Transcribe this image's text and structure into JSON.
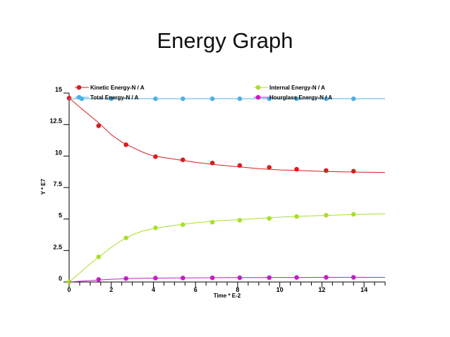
{
  "slide": {
    "title": "Energy Graph"
  },
  "chart_data": {
    "type": "line",
    "title": "",
    "xlabel": "Time * E-2",
    "ylabel": "Y * E7",
    "xlim": [
      0,
      15
    ],
    "ylim": [
      0,
      15
    ],
    "x_ticks": [
      0,
      2,
      4,
      6,
      8,
      10,
      12,
      14
    ],
    "x_tick_labels": [
      "0",
      "2",
      "4",
      "6",
      "8",
      "10",
      "12",
      "14"
    ],
    "y_ticks": [
      0,
      2.5,
      5,
      7.5,
      10,
      12.5,
      15
    ],
    "y_tick_labels": [
      "0",
      "2.5",
      "5",
      "7.5",
      "10",
      "12.5",
      "15"
    ],
    "grid": false,
    "legend_position": "top",
    "series": [
      {
        "name": "Kinetic Energy-N / A",
        "color": "#d81e1e",
        "curve_x": [
          0,
          0.5,
          1,
          1.5,
          2,
          2.5,
          3,
          3.5,
          4,
          5,
          6,
          7,
          8,
          9,
          10,
          11,
          12,
          13,
          14,
          15
        ],
        "curve_y": [
          14.6,
          13.9,
          13.2,
          12.5,
          11.7,
          11.1,
          10.7,
          10.3,
          10.0,
          9.75,
          9.5,
          9.3,
          9.15,
          9.0,
          8.9,
          8.85,
          8.78,
          8.75,
          8.72,
          8.7
        ],
        "markers_x": [
          0,
          1.4,
          2.7,
          4.1,
          5.4,
          6.8,
          8.1,
          9.5,
          10.8,
          12.2,
          13.5
        ],
        "markers_y": [
          14.6,
          12.4,
          10.9,
          9.95,
          9.7,
          9.45,
          9.25,
          9.1,
          8.95,
          8.85,
          8.8
        ]
      },
      {
        "name": "Internal Energy-N / A",
        "color": "#a8e02a",
        "curve_x": [
          0,
          0.5,
          1,
          1.5,
          2,
          2.5,
          3,
          3.5,
          4,
          5,
          6,
          7,
          8,
          9,
          10,
          11,
          12,
          13,
          14,
          15
        ],
        "curve_y": [
          0,
          0.7,
          1.45,
          2.1,
          2.75,
          3.3,
          3.75,
          4.05,
          4.25,
          4.5,
          4.7,
          4.85,
          4.95,
          5.05,
          5.15,
          5.22,
          5.28,
          5.33,
          5.38,
          5.42
        ],
        "markers_x": [
          0,
          1.4,
          2.7,
          4.1,
          5.4,
          6.8,
          8.1,
          9.5,
          10.8,
          12.2,
          13.5
        ],
        "markers_y": [
          0,
          2.0,
          3.5,
          4.3,
          4.55,
          4.75,
          4.9,
          5.05,
          5.2,
          5.3,
          5.38
        ]
      },
      {
        "name": "Total Energy-N / A",
        "color": "#4fb0e6",
        "curve_x": [
          0,
          15
        ],
        "curve_y": [
          14.55,
          14.55
        ],
        "markers_x": [
          0.6,
          2,
          4.1,
          5.4,
          6.8,
          8.1,
          9.5,
          10.8,
          12.2,
          13.5
        ],
        "markers_y": [
          14.55,
          14.55,
          14.55,
          14.55,
          14.55,
          14.55,
          14.55,
          14.55,
          14.55,
          14.55
        ]
      },
      {
        "name": "Hourglass Energy-N / A",
        "color": "#c41ec4",
        "curve_x": [
          0,
          1,
          2,
          3,
          4,
          5,
          6,
          7,
          8,
          9,
          10,
          11,
          12,
          13,
          14,
          15
        ],
        "curve_y": [
          0,
          0.12,
          0.22,
          0.28,
          0.31,
          0.32,
          0.33,
          0.34,
          0.35,
          0.35,
          0.36,
          0.36,
          0.37,
          0.37,
          0.37,
          0.37
        ],
        "markers_x": [
          1.4,
          2.7,
          4.1,
          5.4,
          6.8,
          8.1,
          9.5,
          10.8,
          12.2,
          13.5
        ],
        "markers_y": [
          0.2,
          0.28,
          0.31,
          0.32,
          0.33,
          0.34,
          0.35,
          0.36,
          0.37,
          0.37
        ]
      }
    ]
  }
}
